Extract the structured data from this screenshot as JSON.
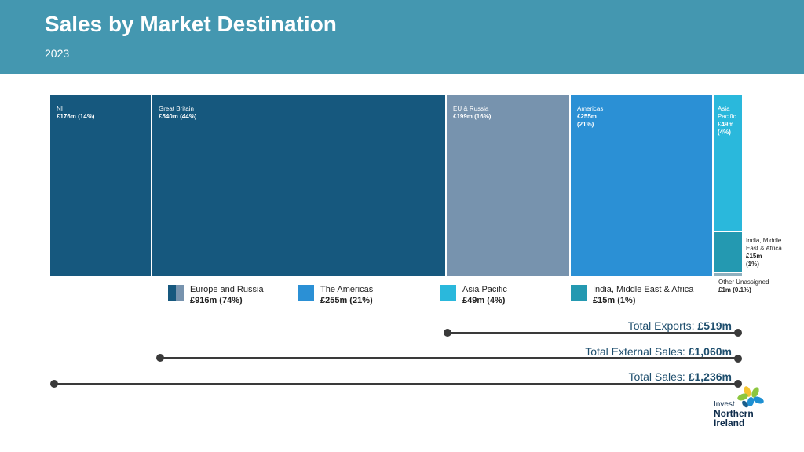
{
  "header": {
    "title": "Sales by Market Destination",
    "subtitle": "2023"
  },
  "chart_data": {
    "type": "treemap",
    "title": "Sales by Market Destination",
    "subtitle": "2023",
    "segments": [
      {
        "label": "NI",
        "value_text": "£176m (14%)",
        "value_m": 176,
        "percent": 14,
        "color": "#16587e"
      },
      {
        "label": "Great Britain",
        "value_text": "£540m (44%)",
        "value_m": 540,
        "percent": 44,
        "color": "#16587e"
      },
      {
        "label": "EU & Russia",
        "value_text": "£199m (16%)",
        "value_m": 199,
        "percent": 16,
        "color": "#7793ae"
      },
      {
        "label": "Americas",
        "value_text": "£255m (21%)",
        "value_m": 255,
        "percent": 21,
        "color": "#2b90d5"
      },
      {
        "label": "Asia Pacific",
        "value_text": "£49m (4%)",
        "value_m": 49,
        "percent": 4,
        "color": "#2ab8dc"
      },
      {
        "label": "India, Middle East & Africa",
        "value_text": "£15m (1%)",
        "value_m": 15,
        "percent": 1,
        "color": "#2499b1"
      },
      {
        "label": "Other Unassigned",
        "value_text": "£1m (0.1%)",
        "value_m": 1,
        "percent": 0.1,
        "color": "#8fb0bf"
      }
    ],
    "legend": [
      {
        "label": "Europe and Russia",
        "value": "£916m (74%)",
        "colors": [
          "#16587e",
          "#7793ae"
        ]
      },
      {
        "label": "The Americas",
        "value": "£255m (21%)",
        "colors": [
          "#2b90d5"
        ]
      },
      {
        "label": "Asia Pacific",
        "value": "£49m (4%)",
        "colors": [
          "#2ab8dc"
        ]
      },
      {
        "label": "India, Middle East & Africa",
        "value": "£15m (1%)",
        "colors": [
          "#2499b1"
        ]
      }
    ],
    "totals": [
      {
        "label": "Total Exports: ",
        "value": "£519m",
        "value_m": 519
      },
      {
        "label": "Total External Sales: ",
        "value": "£1,060m",
        "value_m": 1060
      },
      {
        "label": "Total Sales: ",
        "value": "£1,236m",
        "value_m": 1236
      }
    ]
  },
  "labels": {
    "india_side": [
      "India, Middle",
      "East & Africa"
    ],
    "india_value": [
      "£15m",
      "(1%)"
    ],
    "other_side": "Other Unassigned",
    "other_value": "£1m (0.1%)",
    "asia_lines": [
      "Asia",
      "Pacific"
    ],
    "asia_values": [
      "£49m",
      "(4%)"
    ],
    "americas_values": [
      "£255m",
      "(21%)"
    ]
  },
  "logo": {
    "line1": "Invest",
    "line2": "Northern",
    "line3": "Ireland",
    "colors": [
      "#f4c430",
      "#8cc63f",
      "#1e90d2",
      "#1a5e8a"
    ]
  }
}
